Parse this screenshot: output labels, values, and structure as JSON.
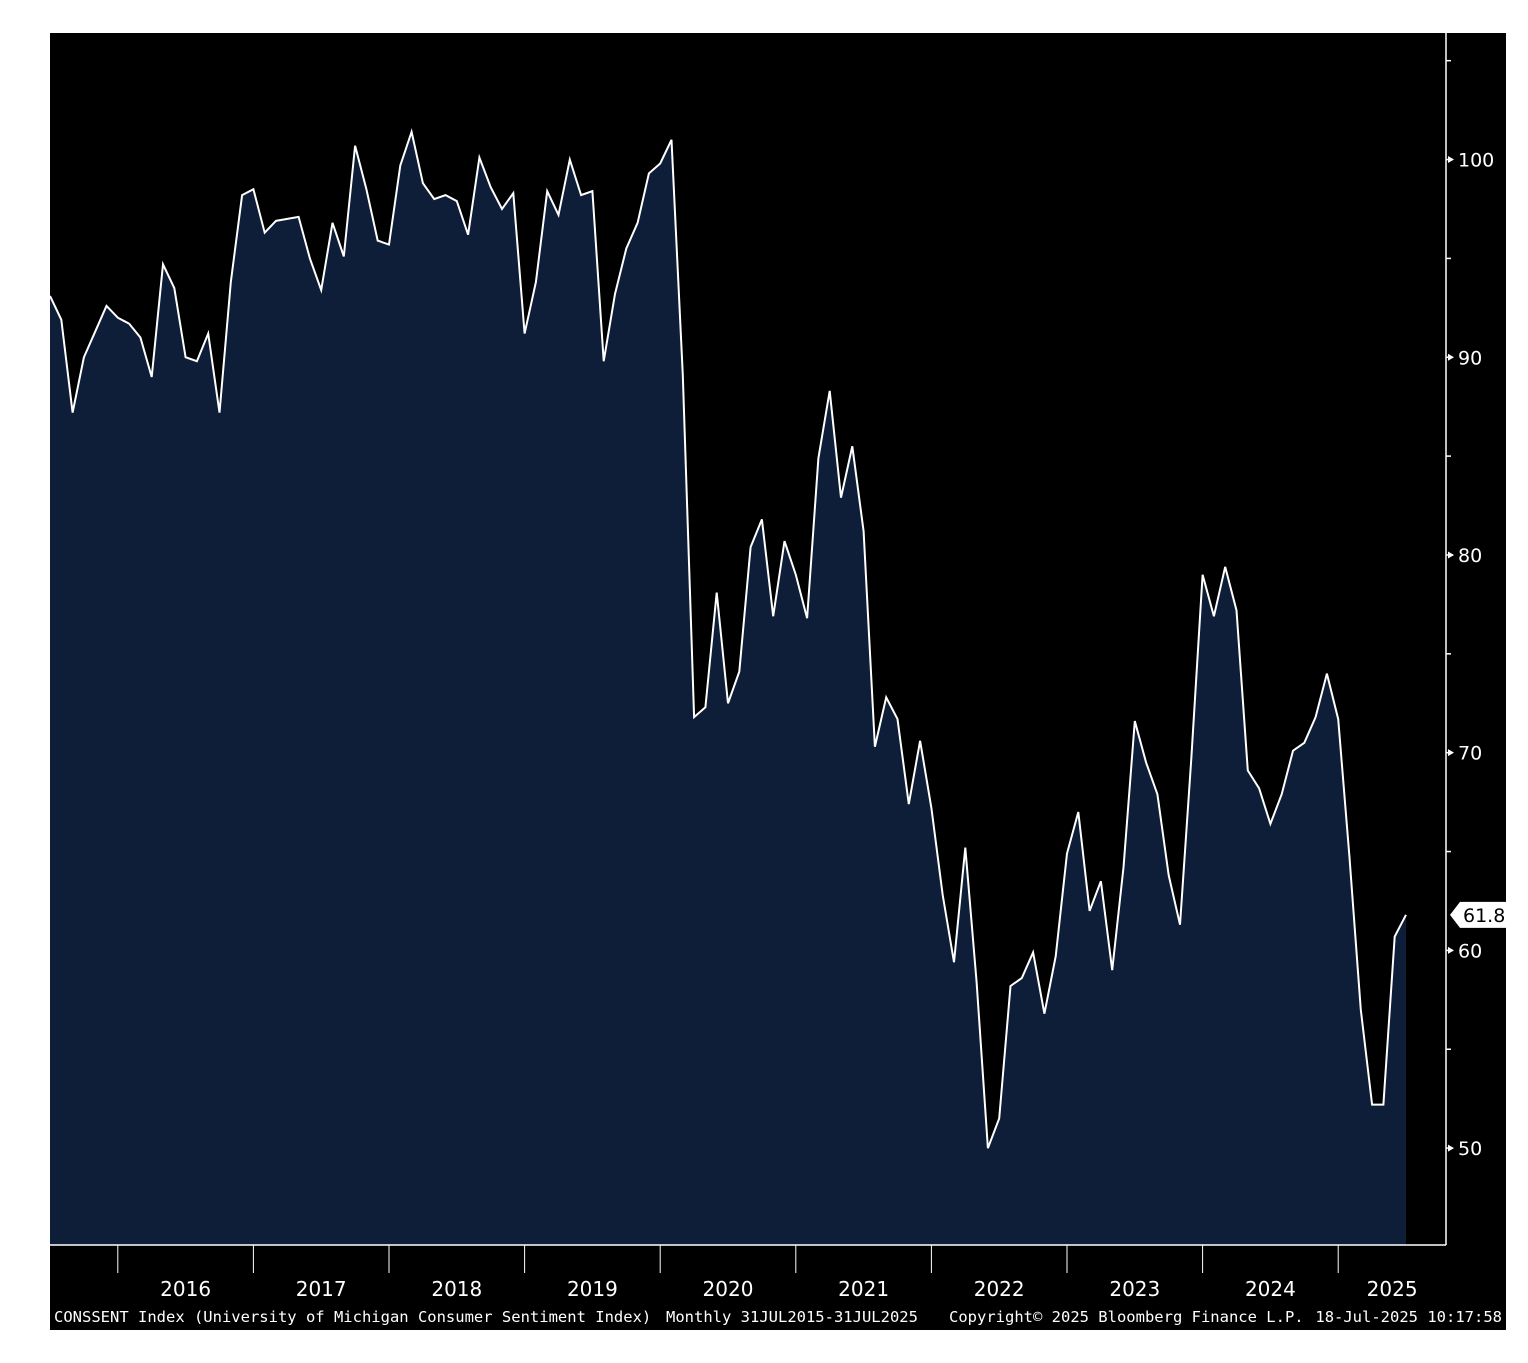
{
  "chart_data": {
    "type": "area",
    "series": [
      {
        "name": "CONSSENT Index",
        "x": [
          "2015-07",
          "2015-08",
          "2015-09",
          "2015-10",
          "2015-11",
          "2015-12",
          "2016-01",
          "2016-02",
          "2016-03",
          "2016-04",
          "2016-05",
          "2016-06",
          "2016-07",
          "2016-08",
          "2016-09",
          "2016-10",
          "2016-11",
          "2016-12",
          "2017-01",
          "2017-02",
          "2017-03",
          "2017-04",
          "2017-05",
          "2017-06",
          "2017-07",
          "2017-08",
          "2017-09",
          "2017-10",
          "2017-11",
          "2017-12",
          "2018-01",
          "2018-02",
          "2018-03",
          "2018-04",
          "2018-05",
          "2018-06",
          "2018-07",
          "2018-08",
          "2018-09",
          "2018-10",
          "2018-11",
          "2018-12",
          "2019-01",
          "2019-02",
          "2019-03",
          "2019-04",
          "2019-05",
          "2019-06",
          "2019-07",
          "2019-08",
          "2019-09",
          "2019-10",
          "2019-11",
          "2019-12",
          "2020-01",
          "2020-02",
          "2020-03",
          "2020-04",
          "2020-05",
          "2020-06",
          "2020-07",
          "2020-08",
          "2020-09",
          "2020-10",
          "2020-11",
          "2020-12",
          "2021-01",
          "2021-02",
          "2021-03",
          "2021-04",
          "2021-05",
          "2021-06",
          "2021-07",
          "2021-08",
          "2021-09",
          "2021-10",
          "2021-11",
          "2021-12",
          "2022-01",
          "2022-02",
          "2022-03",
          "2022-04",
          "2022-05",
          "2022-06",
          "2022-07",
          "2022-08",
          "2022-09",
          "2022-10",
          "2022-11",
          "2022-12",
          "2023-01",
          "2023-02",
          "2023-03",
          "2023-04",
          "2023-05",
          "2023-06",
          "2023-07",
          "2023-08",
          "2023-09",
          "2023-10",
          "2023-11",
          "2023-12",
          "2024-01",
          "2024-02",
          "2024-03",
          "2024-04",
          "2024-05",
          "2024-06",
          "2024-07",
          "2024-08",
          "2024-09",
          "2024-10",
          "2024-11",
          "2024-12",
          "2025-01",
          "2025-02",
          "2025-03",
          "2025-04",
          "2025-05",
          "2025-06",
          "2025-07"
        ],
        "values": [
          93.1,
          91.9,
          87.2,
          90.0,
          91.3,
          92.6,
          92.0,
          91.7,
          91.0,
          89.0,
          94.7,
          93.5,
          90.0,
          89.8,
          91.2,
          87.2,
          93.8,
          98.2,
          98.5,
          96.3,
          96.9,
          97.0,
          97.1,
          95.0,
          93.4,
          96.8,
          95.1,
          100.7,
          98.5,
          95.9,
          95.7,
          99.7,
          101.4,
          98.8,
          98.0,
          98.2,
          97.9,
          96.2,
          100.1,
          98.6,
          97.5,
          98.3,
          91.2,
          93.8,
          98.4,
          97.2,
          100.0,
          98.2,
          98.4,
          89.8,
          93.2,
          95.5,
          96.8,
          99.3,
          99.8,
          101.0,
          89.1,
          71.8,
          72.3,
          78.1,
          72.5,
          74.1,
          80.4,
          81.8,
          76.9,
          80.7,
          79.0,
          76.8,
          84.9,
          88.3,
          82.9,
          85.5,
          81.2,
          70.3,
          72.8,
          71.7,
          67.4,
          70.6,
          67.2,
          62.8,
          59.4,
          65.2,
          58.4,
          50.0,
          51.5,
          58.2,
          58.6,
          59.9,
          56.8,
          59.7,
          64.9,
          67.0,
          62.0,
          63.5,
          59.0,
          64.2,
          71.6,
          69.5,
          67.9,
          63.8,
          61.3,
          69.7,
          79.0,
          76.9,
          79.4,
          77.2,
          69.1,
          68.2,
          66.4,
          67.9,
          70.1,
          70.5,
          71.8,
          74.0,
          71.7,
          64.7,
          57.0,
          52.2,
          52.2,
          60.7,
          61.8
        ]
      }
    ],
    "ylim": [
      45.1,
      106.4
    ],
    "yticks": [
      "50",
      "60",
      "70",
      "80",
      "90",
      "100"
    ],
    "xticks": [
      "2016",
      "2017",
      "2018",
      "2019",
      "2020",
      "2021",
      "2022",
      "2023",
      "2024",
      "2025"
    ],
    "last_value_label": "61.8",
    "axis_side": "right",
    "grid": false,
    "title": "",
    "xlabel": "",
    "ylabel": "",
    "colors": {
      "background": "#000000",
      "fill": "#0e1e38",
      "line": "#ffffff",
      "text": "#ffffff",
      "axis": "#ffffff"
    },
    "footer": {
      "description": "CONSSENT Index (University of Michigan Consumer Sentiment Index)",
      "frequency_range": "Monthly 31JUL2015-31JUL2025",
      "copyright": "Copyright© 2025 Bloomberg Finance L.P.",
      "timestamp": "18-Jul-2025 10:17:58"
    }
  }
}
